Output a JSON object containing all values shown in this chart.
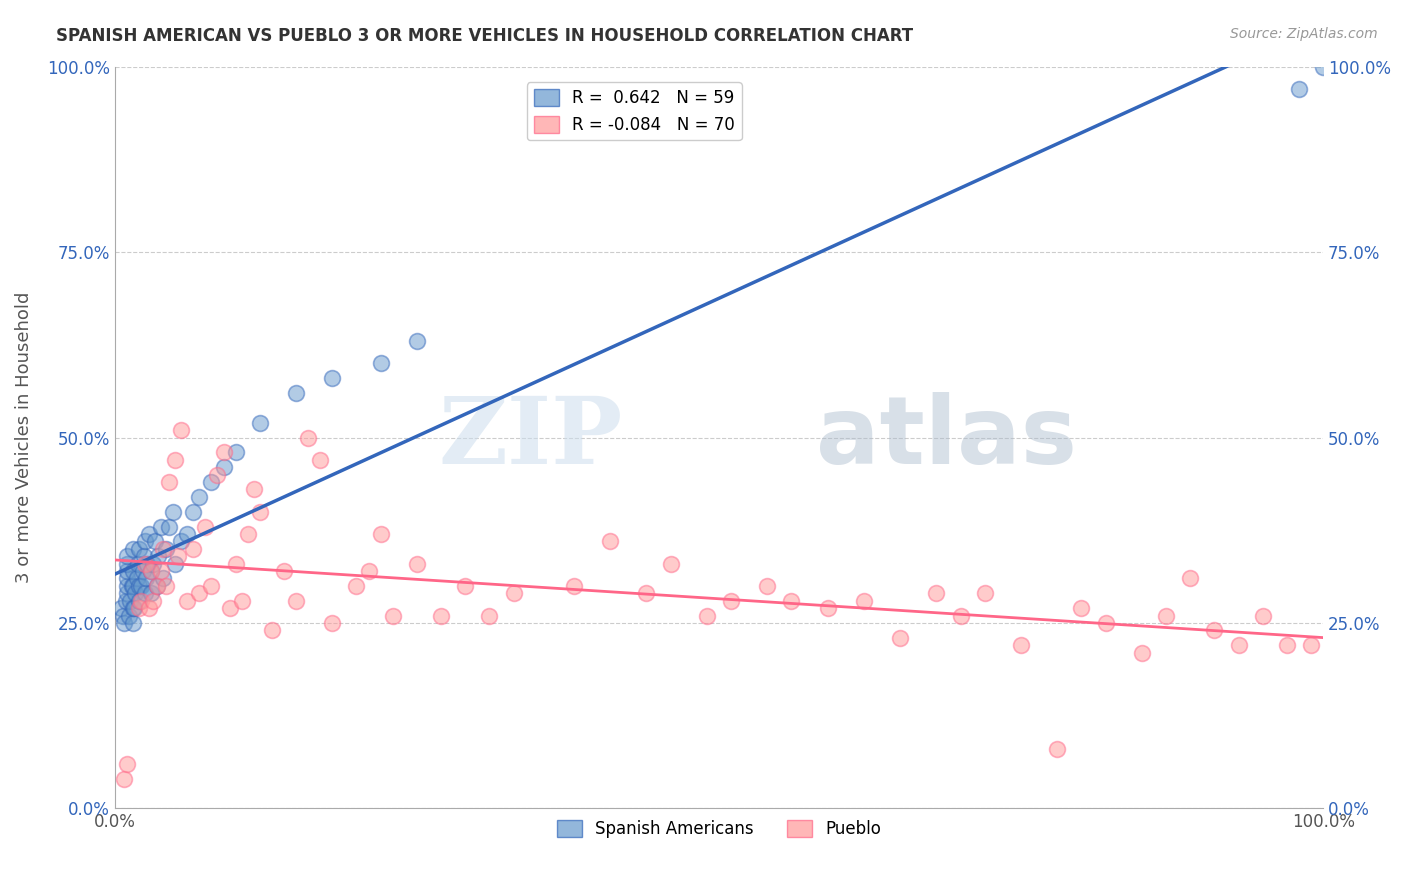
{
  "title": "SPANISH AMERICAN VS PUEBLO 3 OR MORE VEHICLES IN HOUSEHOLD CORRELATION CHART",
  "source": "Source: ZipAtlas.com",
  "ylabel": "3 or more Vehicles in Household",
  "xlim": [
    0,
    1.0
  ],
  "ylim": [
    0,
    1.0
  ],
  "xtick_labels": [
    "0.0%",
    "100.0%"
  ],
  "ytick_labels": [
    "0.0%",
    "25.0%",
    "50.0%",
    "75.0%",
    "100.0%"
  ],
  "ytick_values": [
    0.0,
    0.25,
    0.5,
    0.75,
    1.0
  ],
  "watermark_zip": "ZIP",
  "watermark_atlas": "atlas",
  "legend_blue_r": "0.642",
  "legend_blue_n": "59",
  "legend_pink_r": "-0.084",
  "legend_pink_n": "70",
  "blue_color": "#6699CC",
  "pink_color": "#FF9999",
  "blue_line_color": "#3366BB",
  "pink_line_color": "#FF6688",
  "background_color": "#FFFFFF",
  "grid_color": "#CCCCCC",
  "blue_scatter_x": [
    0.005,
    0.007,
    0.008,
    0.009,
    0.01,
    0.01,
    0.01,
    0.01,
    0.01,
    0.01,
    0.012,
    0.013,
    0.014,
    0.015,
    0.015,
    0.015,
    0.015,
    0.015,
    0.016,
    0.017,
    0.018,
    0.019,
    0.02,
    0.02,
    0.02,
    0.022,
    0.023,
    0.024,
    0.025,
    0.025,
    0.026,
    0.027,
    0.028,
    0.03,
    0.03,
    0.032,
    0.033,
    0.035,
    0.036,
    0.038,
    0.04,
    0.042,
    0.045,
    0.048,
    0.05,
    0.055,
    0.06,
    0.065,
    0.07,
    0.08,
    0.09,
    0.1,
    0.12,
    0.15,
    0.18,
    0.22,
    0.25,
    0.98,
    1.0
  ],
  "blue_scatter_y": [
    0.27,
    0.26,
    0.25,
    0.28,
    0.29,
    0.3,
    0.31,
    0.32,
    0.33,
    0.34,
    0.26,
    0.28,
    0.3,
    0.25,
    0.27,
    0.3,
    0.32,
    0.35,
    0.27,
    0.29,
    0.31,
    0.33,
    0.28,
    0.3,
    0.35,
    0.3,
    0.32,
    0.34,
    0.29,
    0.36,
    0.31,
    0.33,
    0.37,
    0.29,
    0.32,
    0.33,
    0.36,
    0.3,
    0.34,
    0.38,
    0.31,
    0.35,
    0.38,
    0.4,
    0.33,
    0.36,
    0.37,
    0.4,
    0.42,
    0.44,
    0.46,
    0.48,
    0.52,
    0.56,
    0.58,
    0.6,
    0.63,
    0.97,
    1.0
  ],
  "pink_scatter_x": [
    0.008,
    0.01,
    0.02,
    0.022,
    0.025,
    0.028,
    0.03,
    0.032,
    0.035,
    0.038,
    0.04,
    0.042,
    0.045,
    0.05,
    0.052,
    0.055,
    0.06,
    0.065,
    0.07,
    0.075,
    0.08,
    0.085,
    0.09,
    0.095,
    0.1,
    0.105,
    0.11,
    0.115,
    0.12,
    0.13,
    0.14,
    0.15,
    0.16,
    0.17,
    0.18,
    0.2,
    0.21,
    0.22,
    0.23,
    0.25,
    0.27,
    0.29,
    0.31,
    0.33,
    0.38,
    0.41,
    0.44,
    0.46,
    0.49,
    0.51,
    0.54,
    0.56,
    0.59,
    0.62,
    0.65,
    0.68,
    0.7,
    0.72,
    0.75,
    0.78,
    0.8,
    0.82,
    0.85,
    0.87,
    0.89,
    0.91,
    0.93,
    0.95,
    0.97,
    0.99
  ],
  "pink_scatter_y": [
    0.04,
    0.06,
    0.27,
    0.28,
    0.33,
    0.27,
    0.32,
    0.28,
    0.3,
    0.32,
    0.35,
    0.3,
    0.44,
    0.47,
    0.34,
    0.51,
    0.28,
    0.35,
    0.29,
    0.38,
    0.3,
    0.45,
    0.48,
    0.27,
    0.33,
    0.28,
    0.37,
    0.43,
    0.4,
    0.24,
    0.32,
    0.28,
    0.5,
    0.47,
    0.25,
    0.3,
    0.32,
    0.37,
    0.26,
    0.33,
    0.26,
    0.3,
    0.26,
    0.29,
    0.3,
    0.36,
    0.29,
    0.33,
    0.26,
    0.28,
    0.3,
    0.28,
    0.27,
    0.28,
    0.23,
    0.29,
    0.26,
    0.29,
    0.22,
    0.08,
    0.27,
    0.25,
    0.21,
    0.26,
    0.31,
    0.24,
    0.22,
    0.26,
    0.22,
    0.22
  ]
}
